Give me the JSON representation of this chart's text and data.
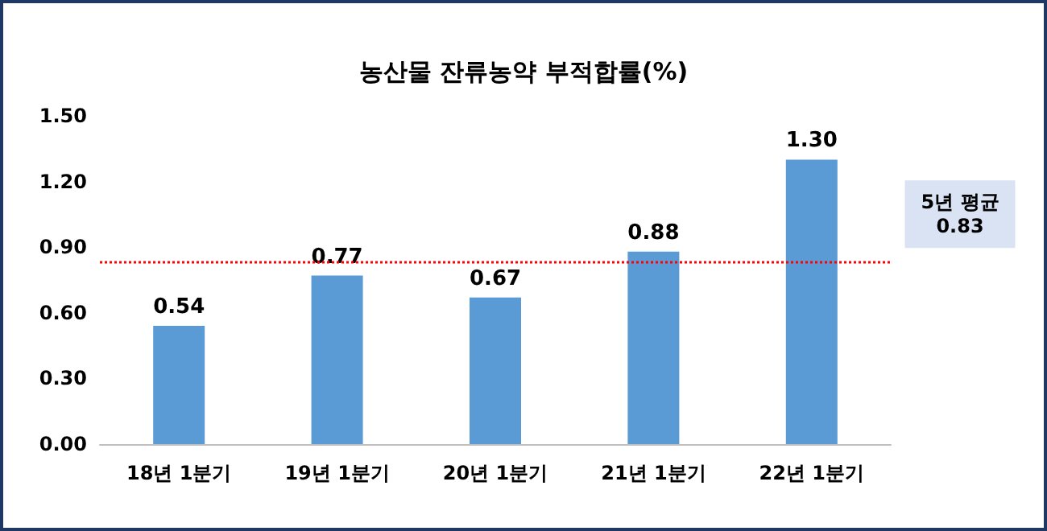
{
  "chart_data": {
    "type": "bar",
    "title": "농산물 잔류농약 부적합률(%)",
    "categories": [
      "18년 1분기",
      "19년 1분기",
      "20년 1분기",
      "21년 1분기",
      "22년 1분기"
    ],
    "values": [
      0.54,
      0.77,
      0.67,
      0.88,
      1.3
    ],
    "value_labels": [
      "0.54",
      "0.77",
      "0.67",
      "0.88",
      "1.30"
    ],
    "color": "#5b9bd5",
    "ylim": [
      0,
      1.5
    ],
    "yticks": [
      {
        "value": 0,
        "label": "0.00"
      },
      {
        "value": 0.3,
        "label": "0.30"
      },
      {
        "value": 0.6,
        "label": "0.60"
      },
      {
        "value": 0.9,
        "label": "0.90"
      },
      {
        "value": 1.2,
        "label": "1.20"
      },
      {
        "value": 1.5,
        "label": "1.50"
      }
    ],
    "ref_lines": [
      {
        "axis": "y",
        "value": 0.83,
        "label": "5년 평균\n0.83",
        "color": "#ff0000",
        "line_style": "dotted"
      }
    ],
    "grid": false
  }
}
